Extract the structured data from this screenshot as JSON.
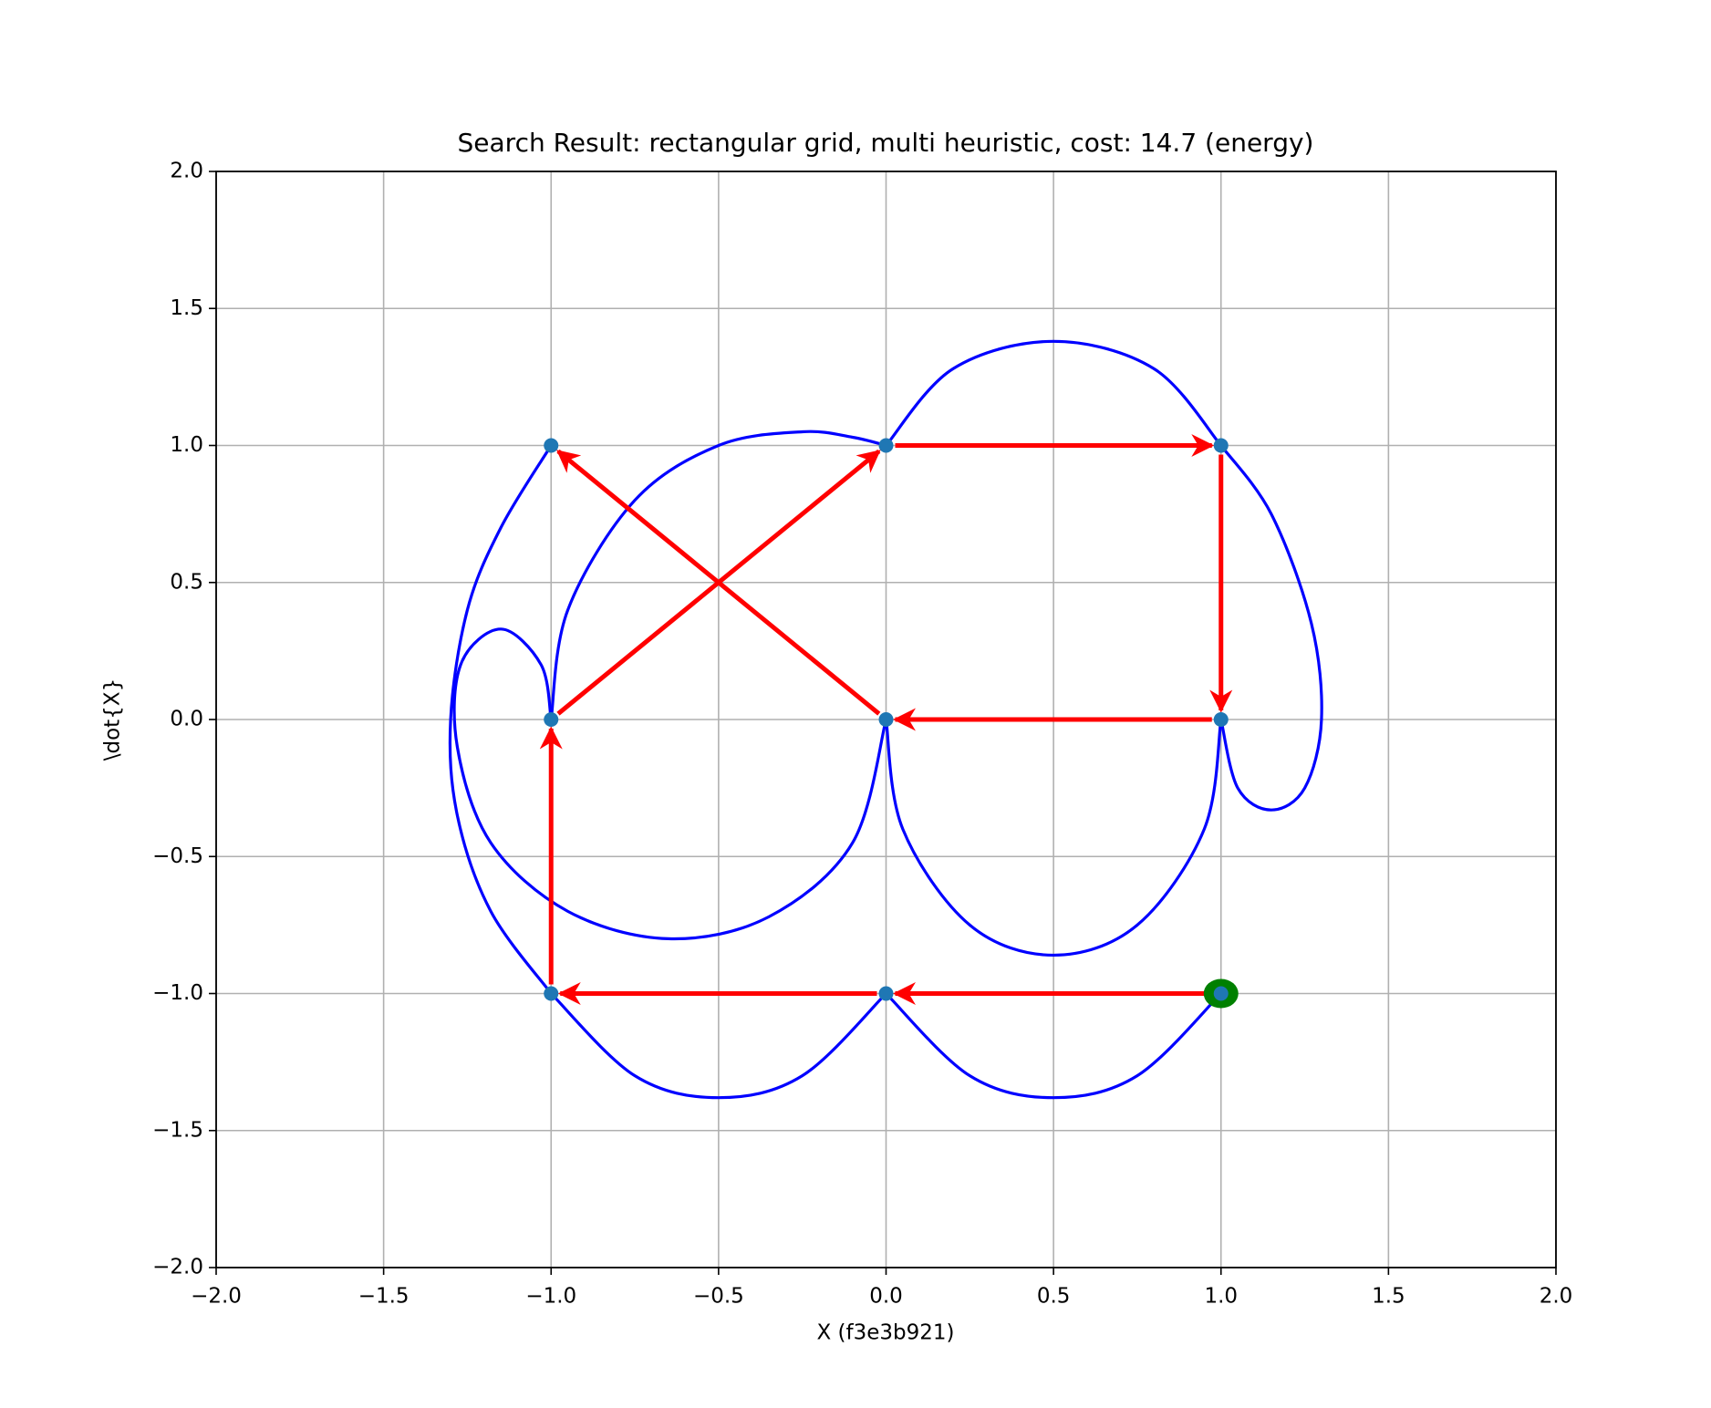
{
  "chart_data": {
    "type": "trajectory",
    "title": "Search Result: rectangular grid, multi heuristic, cost: 14.7 (energy)",
    "x_label": "X     (f3e3b921)",
    "y_label": "\\dot{X}",
    "xlim": [
      -2,
      2
    ],
    "ylim": [
      -2,
      2
    ],
    "xticks": [
      {
        "value": -2,
        "label": "−2.0"
      },
      {
        "value": -1.5,
        "label": "−1.5"
      },
      {
        "value": -1,
        "label": "−1.0"
      },
      {
        "value": -0.5,
        "label": "−0.5"
      },
      {
        "value": 0,
        "label": "0.0"
      },
      {
        "value": 0.5,
        "label": "0.5"
      },
      {
        "value": 1,
        "label": "1.0"
      },
      {
        "value": 1.5,
        "label": "1.5"
      },
      {
        "value": 2,
        "label": "2.0"
      }
    ],
    "yticks": [
      {
        "value": -2,
        "label": "−2.0"
      },
      {
        "value": -1.5,
        "label": "−1.5"
      },
      {
        "value": -1,
        "label": "−1.0"
      },
      {
        "value": -0.5,
        "label": "−0.5"
      },
      {
        "value": 0,
        "label": "0.0"
      },
      {
        "value": 0.5,
        "label": "0.5"
      },
      {
        "value": 1,
        "label": "1.0"
      },
      {
        "value": 1.5,
        "label": "1.5"
      },
      {
        "value": 2,
        "label": "2.0"
      }
    ],
    "grid": true,
    "curve_color": "#0000ff",
    "curves": [
      {
        "x": [
          1,
          0.75,
          0.5,
          0.25,
          0
        ],
        "y": [
          -1,
          -1.3,
          -1.38,
          -1.3,
          -1
        ]
      },
      {
        "x": [
          0,
          -0.25,
          -0.5,
          -0.75,
          -1
        ],
        "y": [
          -1,
          -1.3,
          -1.38,
          -1.3,
          -1
        ]
      },
      {
        "x": [
          -1,
          -1.18,
          -1.28,
          -1.3,
          -1.25,
          -1.15,
          -1
        ],
        "y": [
          -1,
          -0.7,
          -0.35,
          0,
          0.4,
          0.7,
          1
        ]
      },
      {
        "x": [
          -1,
          -1.03,
          -1.15,
          -1.27,
          -1.28,
          -1.18,
          -0.95,
          -0.65,
          -0.35,
          -0.1,
          0
        ],
        "y": [
          0,
          0.2,
          0.33,
          0.2,
          -0.1,
          -0.45,
          -0.7,
          -0.8,
          -0.72,
          -0.45,
          0
        ]
      },
      {
        "x": [
          -1,
          -0.95,
          -0.75,
          -0.5,
          -0.25,
          -0.1,
          0
        ],
        "y": [
          0,
          0.4,
          0.8,
          1.0,
          1.05,
          1.03,
          1
        ]
      },
      {
        "x": [
          0,
          0.2,
          0.5,
          0.8,
          1
        ],
        "y": [
          1,
          1.28,
          1.38,
          1.28,
          1
        ]
      },
      {
        "x": [
          1,
          1.15,
          1.27,
          1.3,
          1.25,
          1.15,
          1.05,
          1
        ],
        "y": [
          1,
          0.75,
          0.35,
          0,
          -0.25,
          -0.33,
          -0.25,
          0
        ]
      },
      {
        "x": [
          1,
          0.95,
          0.75,
          0.5,
          0.25,
          0.05,
          0
        ],
        "y": [
          0,
          -0.4,
          -0.75,
          -0.86,
          -0.75,
          -0.4,
          0
        ]
      }
    ],
    "arrow_color": "#ff0000",
    "arrows": [
      {
        "x": [
          1,
          0
        ],
        "y": [
          -1,
          -1
        ]
      },
      {
        "x": [
          0,
          -1
        ],
        "y": [
          -1,
          -1
        ]
      },
      {
        "x": [
          -1,
          -1
        ],
        "y": [
          -1,
          0
        ]
      },
      {
        "x": [
          -1,
          0
        ],
        "y": [
          0,
          1
        ]
      },
      {
        "x": [
          0,
          1
        ],
        "y": [
          1,
          1
        ]
      },
      {
        "x": [
          1,
          1
        ],
        "y": [
          1,
          0
        ]
      },
      {
        "x": [
          1,
          0
        ],
        "y": [
          0,
          0
        ]
      },
      {
        "x": [
          0,
          -1
        ],
        "y": [
          0,
          1
        ]
      }
    ],
    "start_color": "#008000",
    "start": {
      "x": 1,
      "y": -1
    },
    "node_color": "#1f77b4",
    "nodes": {
      "x": [
        1,
        0,
        -1,
        -1,
        0,
        1,
        1,
        0,
        -1
      ],
      "y": [
        -1,
        -1,
        -1,
        0,
        1,
        1,
        0,
        0,
        1
      ]
    }
  }
}
